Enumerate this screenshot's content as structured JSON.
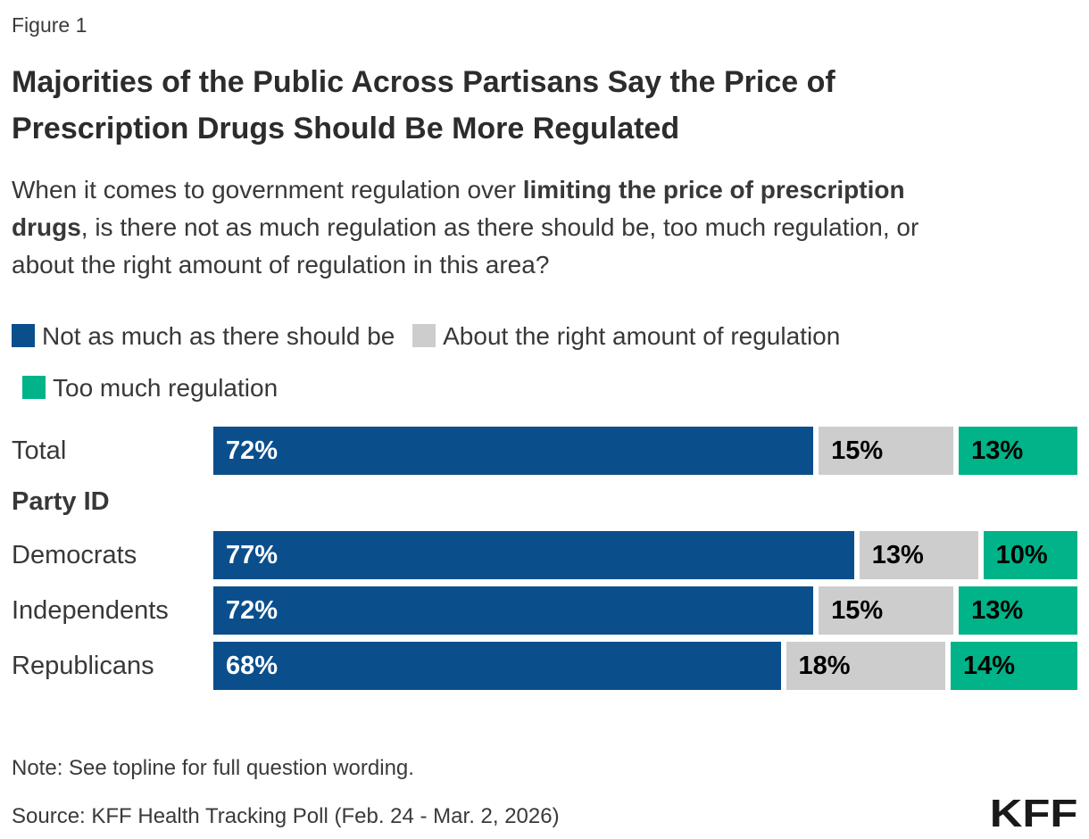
{
  "figure_label": "Figure 1",
  "title": "Majorities of the Public Across Partisans Say the Price of Prescription Drugs Should Be More Regulated",
  "subtitle": {
    "prefix": "When it comes to government regulation over ",
    "bold": "limiting the price of prescription drugs",
    "suffix": ", is there not as much regulation as there should be, too much regulation, or about the right amount of regulation in this area?"
  },
  "legend": [
    {
      "label": "Not as much as there should be",
      "color": "#0a4f8c"
    },
    {
      "label": "About the right amount of regulation",
      "color": "#cdcdcd"
    },
    {
      "label": "Too much regulation",
      "color": "#00b388"
    }
  ],
  "chart_data": {
    "type": "bar",
    "orientation": "horizontal",
    "stacked": true,
    "unit": "%",
    "xlim": [
      0,
      100
    ],
    "categories": [
      "Total",
      "Democrats",
      "Independents",
      "Republicans"
    ],
    "group_label": "Party ID",
    "group_label_after_index": 0,
    "series": [
      {
        "name": "Not as much as there should be",
        "color": "#0a4f8c",
        "label_color": "#ffffff",
        "values": [
          72,
          77,
          72,
          68
        ]
      },
      {
        "name": "About the right amount of regulation",
        "color": "#cdcdcd",
        "label_color": "#000000",
        "values": [
          15,
          13,
          15,
          18
        ]
      },
      {
        "name": "Too much regulation",
        "color": "#00b388",
        "label_color": "#000000",
        "values": [
          13,
          10,
          13,
          14
        ]
      }
    ],
    "value_labels": "inside-start"
  },
  "note": "Note: See topline for full question wording.",
  "source": "Source: KFF Health Tracking Poll (Feb. 24 - Mar. 2, 2026)",
  "logo": "KFF"
}
